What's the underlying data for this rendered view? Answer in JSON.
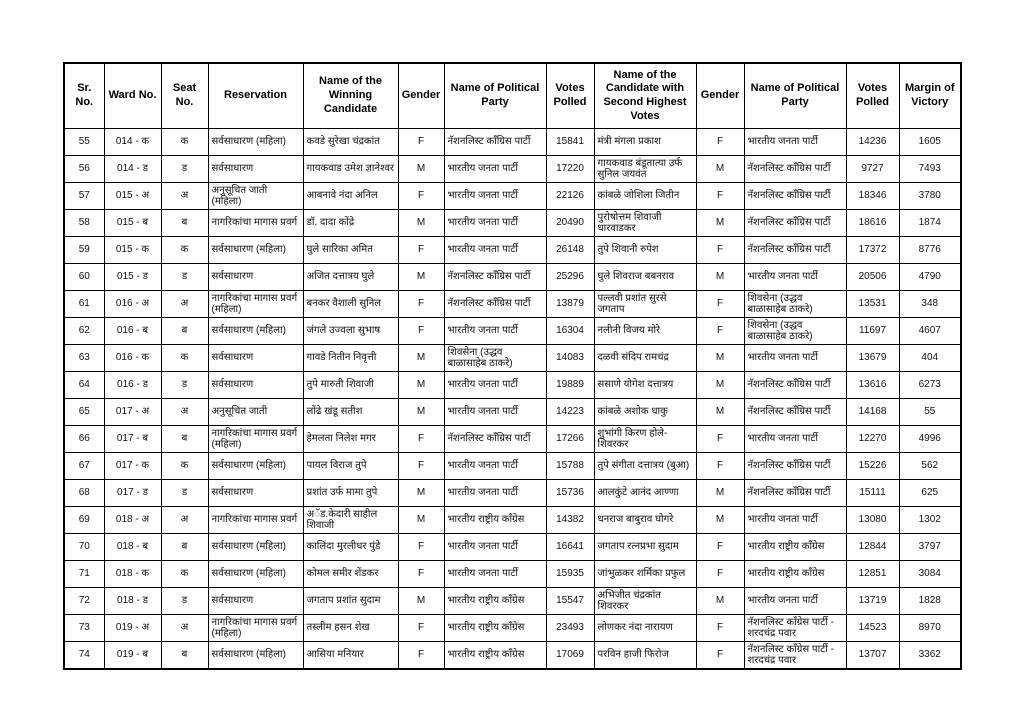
{
  "table": {
    "headers": [
      "Sr. No.",
      "Ward No.",
      "Seat No.",
      "Reservation",
      "Name of the Winning Candidate",
      "Gender",
      "Name of Political Party",
      "Votes Polled",
      "Name of the Candidate with Second Highest Votes",
      "Gender",
      "Name of Political Party",
      "Votes Polled",
      "Margin of Victory"
    ],
    "rows": [
      [
        "55",
        "014 - क",
        "क",
        "सर्वसाधारण (महिला)",
        "कवडे सुरेखा चंद्रकांत",
        "F",
        "नॅशनलिस्ट काँग्रिस पार्टी",
        "15841",
        "मंत्री मंगला प्रकाश",
        "F",
        "भारतीय जनता पार्टी",
        "14236",
        "1605"
      ],
      [
        "56",
        "014 - ड",
        "ड",
        "सर्वसाधारण",
        "गायकवाड उमेश ज्ञानेश्वर",
        "M",
        "भारतीय जनता पार्टी",
        "17220",
        "गायकवाड बंडूतात्या उर्फ सुनिल जयवंत",
        "M",
        "नॅशनलिस्ट काँग्रिस पार्टी",
        "9727",
        "7493"
      ],
      [
        "57",
        "015 - अ",
        "अ",
        "अनुसूचित जाती (महिला)",
        "आबनावे नंदा अनिल",
        "F",
        "भारतीय जनता पार्टी",
        "22126",
        "कांबळे जोशिला जितीन",
        "F",
        "नॅशनलिस्ट काँग्रिस पार्टी",
        "18346",
        "3780"
      ],
      [
        "58",
        "015 - ब",
        "ब",
        "नागरिकांचा मागास प्रवर्ग",
        "डॉ. दादा कोंद्रे",
        "M",
        "भारतीय जनता पार्टी",
        "20490",
        "पुरोषोत्तम शिवाजी धारवाडकर",
        "M",
        "नॅशनलिस्ट काँग्रिस पार्टी",
        "18616",
        "1874"
      ],
      [
        "59",
        "015 - क",
        "क",
        "सर्वसाधारण (महिला)",
        "घुले सारिका अमित",
        "F",
        "भारतीय जनता पार्टी",
        "26148",
        "तुपे शिवानी रुपेश",
        "F",
        "नॅशनलिस्ट काँग्रिस पार्टी",
        "17372",
        "8776"
      ],
      [
        "60",
        "015 - ड",
        "ड",
        "सर्वसाधारण",
        "अजित दत्तात्रय घुले",
        "M",
        "नॅशनलिस्ट काँग्रिस पार्टी",
        "25296",
        "घुले शिवराज बबनराव",
        "M",
        "भारतीय जनता पार्टी",
        "20506",
        "4790"
      ],
      [
        "61",
        "016 - अ",
        "अ",
        "नागरिकांचा मागास प्रवर्ग (महिला)",
        "बनकर वैशाली सुनिल",
        "F",
        "नॅशनलिस्ट काँग्रिस पार्टी",
        "13879",
        "पल्लवी प्रशांत सुरसे जगताप",
        "F",
        "शिवसेना (उद्धव बाळासाहेब ठाकरे)",
        "13531",
        "348"
      ],
      [
        "62",
        "016 - ब",
        "ब",
        "सर्वसाधारण (महिला)",
        "जंगले उज्वला सुभाष",
        "F",
        "भारतीय जनता पार्टी",
        "16304",
        "नलीनी विजय मोरे",
        "F",
        "शिवसेना (उद्धव बाळासाहेब ठाकरे)",
        "11697",
        "4607"
      ],
      [
        "63",
        "016 - क",
        "क",
        "सर्वसाधारण",
        "गावडे नितीन निवृत्ती",
        "M",
        "शिवसेना (उद्धव बाळासाहेब ठाकरे)",
        "14083",
        "दळवी संदिप रामचंद्र",
        "M",
        "भारतीय जनता पार्टी",
        "13679",
        "404"
      ],
      [
        "64",
        "016 - ड",
        "ड",
        "सर्वसाधारण",
        "तुपे मारुती शिवाजी",
        "M",
        "भारतीय जनता पार्टी",
        "19889",
        "ससाणे योगेश दत्तात्रय",
        "M",
        "नॅशनलिस्ट काँग्रिस पार्टी",
        "13616",
        "6273"
      ],
      [
        "65",
        "017 - अ",
        "अ",
        "अनुसूचित जाती",
        "लोंढे खंडू सतीश",
        "M",
        "भारतीय जनता पार्टी",
        "14223",
        "कांबळे अशोक धाकु",
        "M",
        "नॅशनलिस्ट काँग्रिस पार्टी",
        "14168",
        "55"
      ],
      [
        "66",
        "017 - ब",
        "ब",
        "नागरिकांचा मागास प्रवर्ग (महिला)",
        "हेमलता निलेश मगर",
        "F",
        "नॅशनलिस्ट काँग्रिस पार्टी",
        "17266",
        "शुभांगी किरण होले-शिवरकर",
        "F",
        "भारतीय जनता पार्टी",
        "12270",
        "4996"
      ],
      [
        "67",
        "017 - क",
        "क",
        "सर्वसाधारण (महिला)",
        "पायल विराज तुपे",
        "F",
        "भारतीय जनता पार्टी",
        "15788",
        "तुपे संगीता दत्तात्रय (बुआ)",
        "F",
        "नॅशनलिस्ट काँग्रिस पार्टी",
        "15226",
        "562"
      ],
      [
        "68",
        "017 - ड",
        "ड",
        "सर्वसाधारण",
        "प्रशांत उर्फ मामा तुपे",
        "M",
        "भारतीय जनता पार्टी",
        "15736",
        "आलकुंटे आनंद आण्णा",
        "M",
        "नॅशनलिस्ट काँग्रिस पार्टी",
        "15111",
        "625"
      ],
      [
        "69",
        "018 - अ",
        "अ",
        "नागरिकांचा मागास प्रवर्ग",
        "अॅड.केदारी साहील शिवाजी",
        "M",
        "भारतीय राष्ट्रीय काँग्रेस",
        "14382",
        "धनराज बाबुराव घोगरे",
        "M",
        "भारतीय जनता पार्टी",
        "13080",
        "1302"
      ],
      [
        "70",
        "018 - ब",
        "ब",
        "सर्वसाधारण (महिला)",
        "कालिंदा मुरलीधर पुंडे",
        "F",
        "भारतीय जनता पार्टी",
        "16641",
        "जगताप रत्नप्रभा सुदाम",
        "F",
        "भारतीय राष्ट्रीय काँग्रेस",
        "12844",
        "3797"
      ],
      [
        "71",
        "018 - क",
        "क",
        "सर्वसाधारण (महिला)",
        "कोमल समीर शेंडकर",
        "F",
        "भारतीय जनता पार्टी",
        "15935",
        "जांभुळकर शर्मिका प्रफुल",
        "F",
        "भारतीय राष्ट्रीय काँग्रेस",
        "12851",
        "3084"
      ],
      [
        "72",
        "018 - ड",
        "ड",
        "सर्वसाधारण",
        "जगताप प्रशांत सुदाम",
        "M",
        "भारतीय राष्ट्रीय काँग्रेस",
        "15547",
        "अभिजीत चंद्रकांत शिवरकर",
        "M",
        "भारतीय जनता पार्टी",
        "13719",
        "1828"
      ],
      [
        "73",
        "019 - अ",
        "अ",
        "नागरिकांचा मागास प्रवर्ग (महिला)",
        "तस्लीम हसन शेख",
        "F",
        "भारतीय राष्ट्रीय काँग्रेस",
        "23493",
        "लोणकर नंदा नारायण",
        "F",
        "नॅशनलिस्ट काँग्रेस पार्टी - शरदचंद्र पवार",
        "14523",
        "8970"
      ],
      [
        "74",
        "019 - ब",
        "ब",
        "सर्वसाधारण (महिला)",
        "आसिया मनियार",
        "F",
        "भारतीय राष्ट्रीय काँग्रेस",
        "17069",
        "परविन हाजी फिरोज",
        "F",
        "नॅशनलिस्ट काँग्रेस पार्टी - शरदचंद्र पवार",
        "13707",
        "3362"
      ]
    ],
    "column_alignments": [
      "c",
      "c",
      "c",
      "l",
      "l",
      "c",
      "l",
      "c",
      "l",
      "c",
      "l",
      "c",
      "c"
    ]
  }
}
